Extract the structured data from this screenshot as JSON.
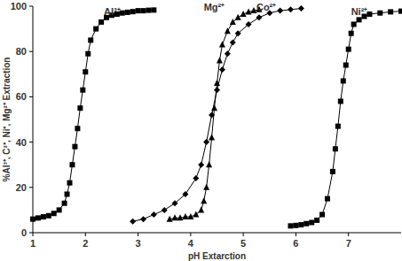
{
  "chart_data": {
    "type": "line",
    "x_label": "pH Extarction",
    "y_label": "%Al³⁺, C²⁺, Ni⁺, Mg²⁺ Extraction",
    "xlim": [
      1,
      8
    ],
    "xticks": [
      1,
      2,
      3,
      4,
      5,
      6,
      7
    ],
    "ylim": [
      0,
      100
    ],
    "yticks": [
      0,
      20,
      40,
      60,
      80,
      100
    ],
    "grid": false,
    "series": [
      {
        "color": "#000000",
        "marker": "square",
        "x": [
          1.0,
          1.1,
          1.2,
          1.3,
          1.4,
          1.5,
          1.6,
          1.65,
          1.7,
          1.75,
          1.8,
          1.85,
          1.9,
          1.95,
          2.0,
          2.05,
          2.1,
          2.2,
          2.3,
          2.4,
          2.5,
          2.6,
          2.7,
          2.8,
          2.9,
          3.0,
          3.1,
          3.2,
          3.3
        ],
        "values": [
          6,
          6.5,
          7,
          7.5,
          8.5,
          10,
          13,
          17,
          22,
          30,
          38,
          46,
          55,
          63,
          71,
          79,
          85,
          90,
          93,
          95,
          96,
          96.5,
          97,
          97.3,
          97.6,
          98,
          98,
          98.2,
          98.3
        ]
      },
      {
        "color": "#000000",
        "marker": "triangle",
        "x": [
          3.6,
          3.7,
          3.8,
          3.9,
          4.0,
          4.1,
          4.2,
          4.25,
          4.3,
          4.35,
          4.4,
          4.45,
          4.5,
          4.55,
          4.6,
          4.7,
          4.8,
          4.9,
          5.0,
          5.1,
          5.2,
          5.3
        ],
        "values": [
          6,
          6.5,
          6.5,
          7,
          7,
          8,
          10,
          14,
          20,
          30,
          42,
          55,
          66,
          76,
          83,
          89,
          93,
          95,
          96.5,
          97.5,
          98,
          98.5
        ]
      },
      {
        "color": "#000000",
        "marker": "diamond",
        "x": [
          2.9,
          3.1,
          3.3,
          3.5,
          3.7,
          3.9,
          4.1,
          4.2,
          4.3,
          4.4,
          4.5,
          4.6,
          4.7,
          4.8,
          4.9,
          5.1,
          5.3,
          5.5,
          5.7,
          5.9,
          6.1
        ],
        "values": [
          5,
          6,
          8,
          10,
          13,
          17,
          24,
          30,
          40,
          52,
          63,
          72,
          79,
          84,
          88,
          92,
          95,
          97,
          98,
          98.5,
          99
        ]
      },
      {
        "color": "#000000",
        "marker": "square",
        "x": [
          5.9,
          6.0,
          6.1,
          6.2,
          6.3,
          6.4,
          6.5,
          6.6,
          6.7,
          6.75,
          6.8,
          6.85,
          6.9,
          6.95,
          7.0,
          7.05,
          7.1,
          7.2,
          7.3,
          7.4,
          7.6,
          7.8,
          8.0
        ],
        "values": [
          3,
          3.2,
          3.5,
          4,
          4.5,
          5.5,
          8,
          15,
          27,
          37,
          47,
          58,
          67,
          74,
          81,
          88,
          92,
          94,
          95.5,
          96.5,
          97,
          97.5,
          97.8
        ]
      }
    ],
    "annotations": [
      {
        "text": "Al³⁺",
        "x": 2.35,
        "y": 96
      },
      {
        "text": "Mg²⁺",
        "x": 4.25,
        "y": 98
      },
      {
        "text": "Co²⁺",
        "x": 5.25,
        "y": 98
      },
      {
        "text": "Ni²⁺",
        "x": 7.05,
        "y": 96
      }
    ]
  }
}
